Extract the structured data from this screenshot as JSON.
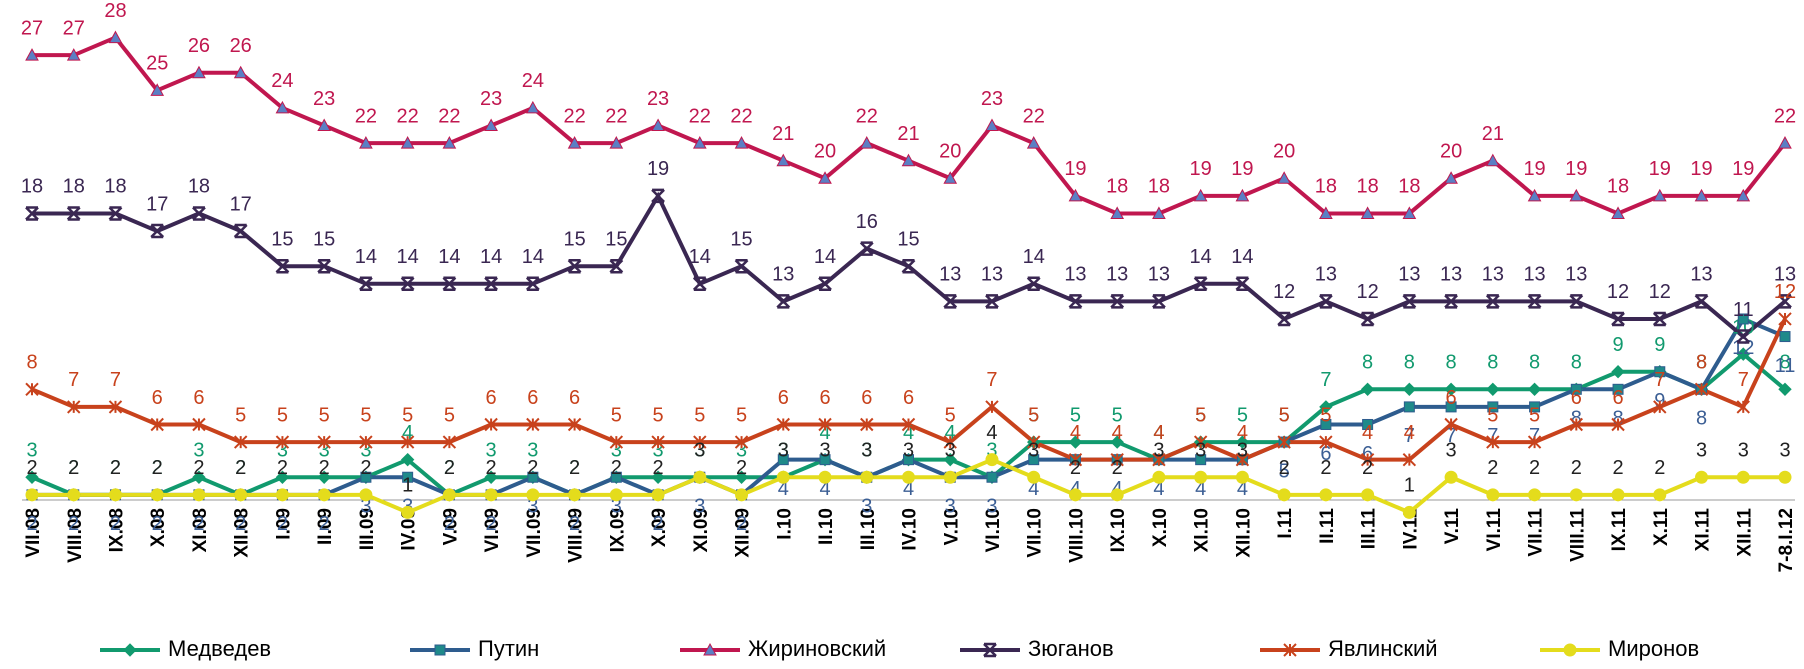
{
  "chart_data": {
    "type": "line",
    "categories": [
      "VII.08",
      "VIII.08",
      "IX.08",
      "X.08",
      "XI.08",
      "XII.08",
      "I.09",
      "II.09",
      "III.09",
      "IV.09",
      "V.09",
      "VI.09",
      "VII.09",
      "VIII.09",
      "IX.09",
      "X.09",
      "XI.09",
      "XII.09",
      "I.10",
      "II.10",
      "III.10",
      "IV.10",
      "V.10",
      "VI.10",
      "VII.10",
      "VIII.10",
      "IX.10",
      "X.10",
      "XI.10",
      "XII.10",
      "I.11",
      "II.11",
      "III.11",
      "IV.11",
      "V.11",
      "VI.11",
      "VII.11",
      "VIII.11",
      "IX.11",
      "X.11",
      "XI.11",
      "XII.11",
      "7-8.I.12"
    ],
    "ylim": [
      0,
      29
    ],
    "series": [
      {
        "name": "Медведев",
        "color": "#119a6e",
        "marker": "diamond",
        "values": [
          3,
          2,
          2,
          2,
          3,
          2,
          3,
          3,
          3,
          4,
          2,
          3,
          3,
          2,
          3,
          3,
          3,
          3,
          3,
          4,
          3,
          4,
          4,
          3,
          5,
          5,
          5,
          4,
          5,
          5,
          5,
          7,
          8,
          8,
          8,
          8,
          8,
          8,
          9,
          9,
          8,
          10,
          8
        ]
      },
      {
        "name": "Путин",
        "color": "#2e5c8e",
        "marker": "square",
        "values": [
          2,
          2,
          2,
          2,
          2,
          2,
          2,
          2,
          3,
          3,
          2,
          2,
          3,
          2,
          3,
          2,
          3,
          2,
          4,
          4,
          3,
          4,
          3,
          3,
          4,
          4,
          4,
          4,
          4,
          4,
          5,
          6,
          6,
          7,
          7,
          7,
          7,
          8,
          8,
          9,
          8,
          12,
          11
        ]
      },
      {
        "name": "Жириновский",
        "color": "#c0174f",
        "marker": "triangle",
        "values": [
          27,
          27,
          28,
          25,
          26,
          26,
          24,
          23,
          22,
          22,
          22,
          23,
          24,
          22,
          22,
          23,
          22,
          22,
          21,
          20,
          22,
          21,
          20,
          23,
          22,
          19,
          18,
          18,
          19,
          19,
          20,
          18,
          18,
          18,
          20,
          21,
          19,
          19,
          18,
          19,
          19,
          19,
          22
        ]
      },
      {
        "name": "Зюганов",
        "color": "#3a2752",
        "marker": "bowtie",
        "values": [
          18,
          18,
          18,
          17,
          18,
          17,
          15,
          15,
          14,
          14,
          14,
          14,
          14,
          15,
          15,
          19,
          14,
          15,
          13,
          14,
          16,
          15,
          13,
          13,
          14,
          13,
          13,
          13,
          14,
          14,
          12,
          13,
          12,
          13,
          13,
          13,
          13,
          13,
          12,
          12,
          13,
          11,
          13
        ]
      },
      {
        "name": "Явлинский",
        "color": "#c8421c",
        "marker": "star",
        "values": [
          8,
          7,
          7,
          6,
          6,
          5,
          5,
          5,
          5,
          5,
          5,
          6,
          6,
          6,
          5,
          5,
          5,
          5,
          6,
          6,
          6,
          6,
          5,
          7,
          5,
          4,
          4,
          4,
          5,
          4,
          5,
          5,
          4,
          4,
          6,
          5,
          5,
          6,
          6,
          7,
          8,
          7,
          12
        ]
      },
      {
        "name": "Миронов",
        "color": "#e4dc1c",
        "marker": "circle",
        "values": [
          2,
          2,
          2,
          2,
          2,
          2,
          2,
          2,
          2,
          1,
          2,
          2,
          2,
          2,
          2,
          2,
          3,
          2,
          3,
          3,
          3,
          3,
          3,
          4,
          3,
          2,
          2,
          3,
          3,
          3,
          2,
          2,
          2,
          1,
          3,
          2,
          2,
          2,
          2,
          2,
          3,
          3,
          3
        ]
      }
    ]
  }
}
